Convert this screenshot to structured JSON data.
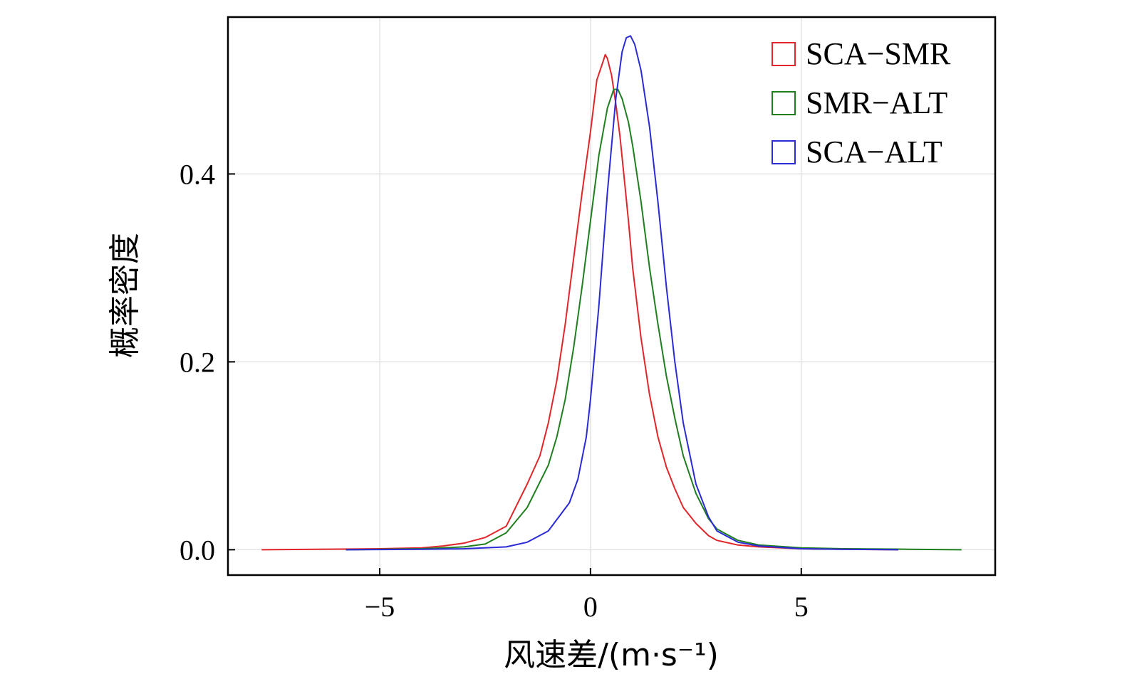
{
  "chart_data": {
    "type": "line",
    "xlabel": "风速差/(m·s⁻¹)",
    "ylabel": "概率密度",
    "xlim": [
      -8.6,
      9.6
    ],
    "ylim": [
      -0.027,
      0.567
    ],
    "xticks": [
      -5,
      0,
      5
    ],
    "xtick_labels": [
      "−5",
      "0",
      "5"
    ],
    "yticks": [
      0.0,
      0.2,
      0.4
    ],
    "ytick_labels": [
      "0.0",
      "0.2",
      "0.4"
    ],
    "grid": true,
    "legend_position": "top-right",
    "series": [
      {
        "name": "SCA−SMR",
        "color": "#e0262b",
        "x": [
          -7.8,
          -5.0,
          -4.0,
          -3.5,
          -3.0,
          -2.5,
          -2.0,
          -1.5,
          -1.2,
          -1.0,
          -0.8,
          -0.6,
          -0.4,
          -0.2,
          0.0,
          0.15,
          0.3,
          0.35,
          0.4,
          0.5,
          0.6,
          0.7,
          0.8,
          0.9,
          1.0,
          1.2,
          1.4,
          1.6,
          1.8,
          2.0,
          2.2,
          2.5,
          2.8,
          3.0,
          3.5,
          4.0,
          5.0,
          6.0,
          7.3
        ],
        "y": [
          0.0,
          0.001,
          0.002,
          0.004,
          0.007,
          0.013,
          0.025,
          0.07,
          0.1,
          0.135,
          0.18,
          0.24,
          0.31,
          0.38,
          0.445,
          0.5,
          0.52,
          0.527,
          0.523,
          0.505,
          0.475,
          0.44,
          0.395,
          0.35,
          0.3,
          0.225,
          0.165,
          0.12,
          0.088,
          0.065,
          0.045,
          0.028,
          0.015,
          0.01,
          0.005,
          0.003,
          0.001,
          0.0005,
          0.0
        ]
      },
      {
        "name": "SMR−ALT",
        "color": "#1f7f1f",
        "x": [
          -5.8,
          -4.0,
          -3.0,
          -2.5,
          -2.0,
          -1.5,
          -1.0,
          -0.8,
          -0.6,
          -0.4,
          -0.2,
          0.0,
          0.2,
          0.4,
          0.55,
          0.65,
          0.75,
          0.9,
          1.0,
          1.2,
          1.4,
          1.6,
          1.8,
          2.0,
          2.2,
          2.5,
          2.8,
          3.0,
          3.5,
          4.0,
          5.0,
          6.0,
          7.5,
          8.8
        ],
        "y": [
          0.0,
          0.001,
          0.003,
          0.006,
          0.018,
          0.045,
          0.09,
          0.12,
          0.16,
          0.215,
          0.28,
          0.35,
          0.42,
          0.47,
          0.49,
          0.49,
          0.48,
          0.455,
          0.43,
          0.37,
          0.3,
          0.24,
          0.185,
          0.14,
          0.1,
          0.06,
          0.033,
          0.022,
          0.01,
          0.005,
          0.002,
          0.001,
          0.0005,
          0.0
        ]
      },
      {
        "name": "SCA−ALT",
        "color": "#2a2ad6",
        "x": [
          -5.8,
          -4.0,
          -3.0,
          -2.0,
          -1.5,
          -1.0,
          -0.5,
          -0.3,
          -0.1,
          0.0,
          0.2,
          0.4,
          0.6,
          0.75,
          0.85,
          0.95,
          1.05,
          1.2,
          1.4,
          1.6,
          1.8,
          2.0,
          2.2,
          2.5,
          2.8,
          3.0,
          3.5,
          4.0,
          5.0,
          6.0,
          7.3
        ],
        "y": [
          0.0,
          0.0005,
          0.001,
          0.003,
          0.008,
          0.02,
          0.05,
          0.075,
          0.12,
          0.16,
          0.26,
          0.38,
          0.48,
          0.53,
          0.545,
          0.547,
          0.538,
          0.51,
          0.45,
          0.37,
          0.28,
          0.2,
          0.135,
          0.07,
          0.035,
          0.02,
          0.008,
          0.004,
          0.001,
          0.0005,
          0.0
        ]
      }
    ]
  }
}
